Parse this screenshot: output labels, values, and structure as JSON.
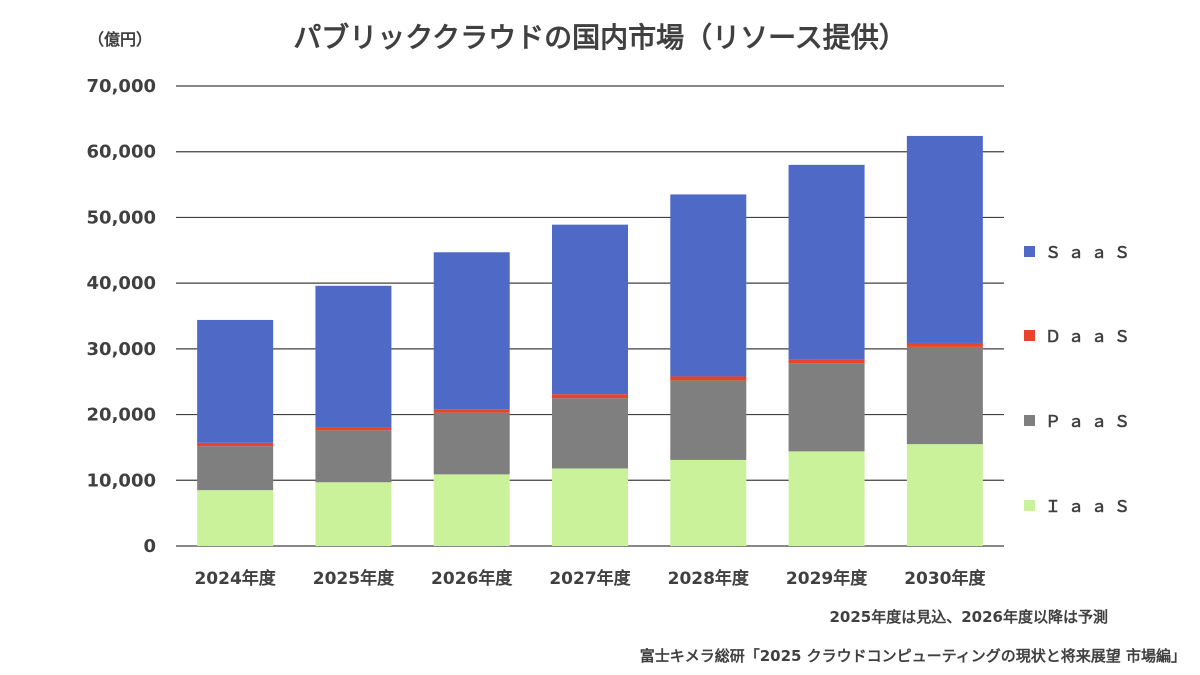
{
  "chart_data": {
    "type": "bar",
    "stacked": true,
    "title": "パブリッククラウドの国内市場（リソース提供）",
    "unit_label": "（億円）",
    "categories": [
      "2024年度",
      "2025年度",
      "2026年度",
      "2027年度",
      "2028年度",
      "2029年度",
      "2030年度"
    ],
    "series": [
      {
        "name": "ＩａａＳ",
        "color": "#c9f29b",
        "values": [
          8500,
          9700,
          10900,
          11800,
          13100,
          14400,
          15500
        ]
      },
      {
        "name": "ＰａａＳ",
        "color": "#7f7f7f",
        "values": [
          6700,
          7900,
          9400,
          10700,
          12100,
          13400,
          14800
        ]
      },
      {
        "name": "ＤａａＳ",
        "color": "#e8442a",
        "values": [
          500,
          500,
          500,
          600,
          600,
          600,
          600
        ]
      },
      {
        "name": "ＳａａＳ",
        "color": "#4f69c6",
        "values": [
          18700,
          21500,
          23900,
          25800,
          27700,
          29600,
          31500
        ]
      }
    ],
    "ylim": [
      0,
      70000
    ],
    "yticks": [
      "0",
      "10,000",
      "20,000",
      "30,000",
      "40,000",
      "50,000",
      "60,000",
      "70,000"
    ],
    "ytick_values": [
      0,
      10000,
      20000,
      30000,
      40000,
      50000,
      60000,
      70000
    ],
    "grid": true,
    "legend_position": "right"
  },
  "notes": {
    "forecast": "2025年度は見込、2026年度以降は予測",
    "source": "富士キメラ総研「2025 クラウドコンピューティングの現状と将来展望 市場編」"
  }
}
